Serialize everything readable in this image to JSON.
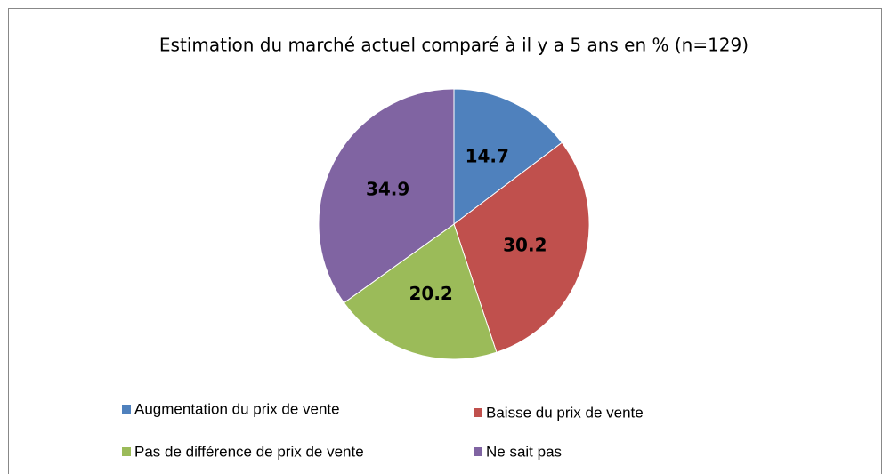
{
  "chart_data": {
    "type": "pie",
    "title": "Estimation du marché actuel comparé à il y a 5 ans en % (n=129)",
    "categories": [
      "Augmentation du prix de vente",
      "Baisse du prix de vente",
      "Pas de différence de prix de vente",
      "Ne sait pas"
    ],
    "values": [
      14.7,
      30.2,
      20.2,
      34.9
    ],
    "colors": [
      "#4f81bd",
      "#c0504d",
      "#9bbb59",
      "#8064a2"
    ],
    "legend": "bottom"
  }
}
